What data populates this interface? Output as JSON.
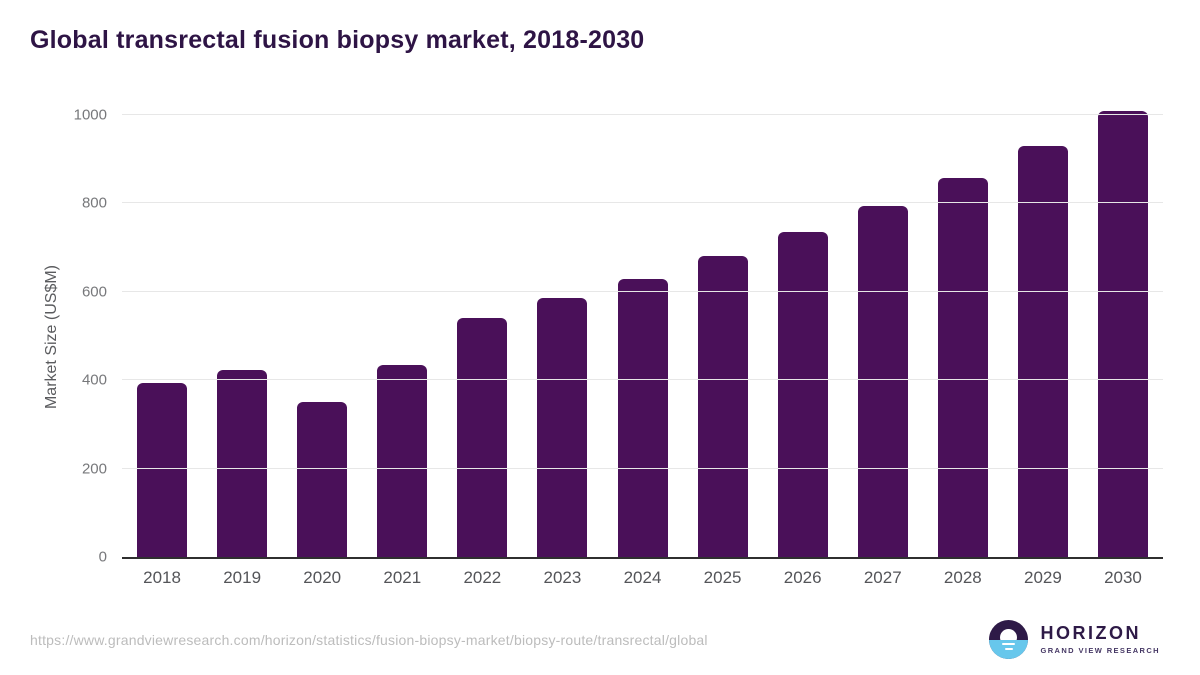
{
  "header": {
    "title": "Global transrectal fusion biopsy market, 2018-2030"
  },
  "chart_data": {
    "type": "bar",
    "title": "Global transrectal fusion biopsy market, 2018-2030",
    "categories": [
      "2018",
      "2019",
      "2020",
      "2021",
      "2022",
      "2023",
      "2024",
      "2025",
      "2026",
      "2027",
      "2028",
      "2029",
      "2030"
    ],
    "values": [
      393,
      424,
      350,
      434,
      540,
      585,
      630,
      680,
      736,
      795,
      858,
      929,
      1008
    ],
    "xlabel": "",
    "ylabel": "Market Size (US$M)",
    "yticks": [
      0,
      200,
      400,
      600,
      800,
      1000
    ],
    "ylim": [
      0,
      1000
    ],
    "grid": "horizontal",
    "legend": "none"
  },
  "footer": {
    "source_url": "https://www.grandviewresearch.com/horizon/statistics/fusion-biopsy-market/biopsy-route/transrectal/global",
    "logo": {
      "brand": "HORIZON",
      "subtitle": "GRAND VIEW RESEARCH",
      "icon": "horizon-sunset-icon"
    }
  },
  "colors": {
    "bar": "#4a1059",
    "title_text": "#2e1445",
    "axis_title_text": "#5a5b5e",
    "y_tick_text": "#77787b",
    "x_tick_text": "#545559",
    "gridline": "#e7e7e7",
    "baseline": "#2f2f2f",
    "url_text": "#bcbcbc",
    "logo_purple": "#2e1a47",
    "logo_blue": "#67c7ec"
  }
}
